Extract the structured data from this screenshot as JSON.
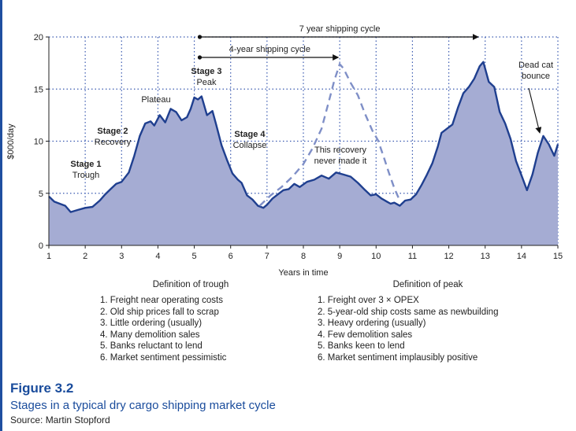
{
  "figure": {
    "label": "Figure 3.2",
    "caption": "Stages in a typical dry cargo shipping market cycle",
    "source": "Source: Martin Stopford"
  },
  "trough_definition": {
    "title": "Definition of trough",
    "items": [
      "1. Freight near operating costs",
      "2. Old ship prices fall to scrap",
      "3. Little ordering (usually)",
      "4. Many demolition sales",
      "5. Banks reluctant to lend",
      "6. Market sentiment pessimistic"
    ]
  },
  "peak_definition": {
    "title": "Definition of peak",
    "items": [
      "1. Freight over 3 × OPEX",
      "2. 5-year-old ship costs same as newbuilding",
      "3. Heavy ordering (usually)",
      "4. Few demolition sales",
      "5. Banks keen to lend",
      "6. Market sentiment implausibly positive"
    ]
  },
  "colors": {
    "fill": "#a5acd3",
    "line": "#1f3f8f",
    "dashed": "#7f8fc7",
    "grid": "#3a5ab0",
    "title": "#1a4c9c"
  },
  "chart_data": {
    "type": "area",
    "xlabel": "Years in time",
    "ylabel": "$000/day",
    "xlim": [
      1,
      15
    ],
    "ylim": [
      0,
      20
    ],
    "xticks": [
      1,
      2,
      3,
      4,
      5,
      6,
      7,
      8,
      9,
      10,
      11,
      12,
      13,
      14,
      15
    ],
    "yticks": [
      0,
      5,
      10,
      15,
      20
    ],
    "grid": true,
    "series": [
      {
        "style": "solid-area",
        "x": [
          1,
          1.15,
          1.3,
          1.45,
          1.6,
          1.8,
          2.0,
          2.2,
          2.4,
          2.55,
          2.7,
          2.85,
          3.0,
          3.2,
          3.35,
          3.5,
          3.65,
          3.8,
          3.9,
          4.05,
          4.2,
          4.35,
          4.5,
          4.65,
          4.8,
          4.9,
          5.0,
          5.1,
          5.2,
          5.35,
          5.5,
          5.6,
          5.75,
          5.9,
          6.05,
          6.2,
          6.3,
          6.45,
          6.6,
          6.75,
          6.9,
          7.0,
          7.15,
          7.3,
          7.45,
          7.6,
          7.75,
          7.9,
          8.1,
          8.3,
          8.5,
          8.7,
          8.9,
          9.1,
          9.3,
          9.5,
          9.7,
          9.85,
          10.0,
          10.15,
          10.3,
          10.4,
          10.5,
          10.65,
          10.8,
          10.95,
          11.1,
          11.25,
          11.4,
          11.55,
          11.7,
          11.8,
          11.95,
          12.1,
          12.25,
          12.4,
          12.55,
          12.7,
          12.85,
          12.95,
          13.1,
          13.25,
          13.4,
          13.55,
          13.7,
          13.85,
          14.0,
          14.15,
          14.3,
          14.45,
          14.6,
          14.75,
          14.9,
          15.0
        ],
        "values": [
          4.7,
          4.2,
          4.0,
          3.8,
          3.2,
          3.4,
          3.6,
          3.7,
          4.3,
          4.9,
          5.4,
          5.9,
          6.1,
          7.0,
          8.6,
          10.5,
          11.7,
          11.9,
          11.5,
          12.5,
          11.8,
          13.1,
          12.8,
          12.0,
          12.3,
          13.1,
          14.2,
          14.0,
          14.3,
          12.5,
          12.9,
          11.6,
          9.6,
          8.2,
          6.9,
          6.3,
          6.0,
          4.8,
          4.4,
          3.8,
          3.6,
          3.9,
          4.5,
          4.9,
          5.3,
          5.4,
          5.9,
          5.6,
          6.1,
          6.3,
          6.7,
          6.4,
          7.0,
          6.8,
          6.6,
          6.0,
          5.3,
          4.8,
          4.9,
          4.5,
          4.2,
          4.0,
          4.1,
          3.8,
          4.3,
          4.4,
          4.9,
          5.8,
          6.8,
          7.9,
          9.5,
          10.8,
          11.2,
          11.6,
          13.2,
          14.6,
          15.2,
          16.0,
          17.2,
          17.6,
          15.7,
          15.2,
          12.8,
          11.7,
          10.2,
          8.1,
          6.7,
          5.3,
          6.8,
          8.9,
          10.5,
          9.7,
          8.6,
          9.7
        ]
      },
      {
        "style": "dashed",
        "x": [
          6.8,
          7.1,
          7.4,
          7.7,
          8.0,
          8.25,
          8.5,
          8.7,
          8.85,
          9.0,
          9.1,
          9.3,
          9.5,
          9.7,
          9.9,
          10.05,
          10.2,
          10.35,
          10.5,
          10.65
        ],
        "values": [
          3.8,
          4.8,
          5.6,
          6.6,
          7.8,
          9.3,
          11.2,
          13.8,
          15.8,
          17.4,
          17.0,
          15.6,
          14.4,
          12.6,
          11.0,
          10.1,
          8.6,
          7.0,
          5.5,
          4.3
        ]
      }
    ],
    "annotations": [
      {
        "text": "7 year shipping cycle",
        "x_start": 5.15,
        "x_end": 12.85
      },
      {
        "text": "4-year shipping cycle",
        "x_start": 5.15,
        "x_end": 9.0
      },
      {
        "lines": [
          "Stage 1",
          "Trough"
        ]
      },
      {
        "lines": [
          "Stage 2",
          "Recovery"
        ]
      },
      {
        "lines": [
          "Plateau"
        ]
      },
      {
        "lines": [
          "Stage 3",
          "Peak"
        ]
      },
      {
        "lines": [
          "Stage 4",
          "Collapse"
        ]
      },
      {
        "lines": [
          "This recovery",
          "never made it"
        ]
      },
      {
        "lines": [
          "Dead cat",
          "bounce"
        ]
      }
    ]
  }
}
